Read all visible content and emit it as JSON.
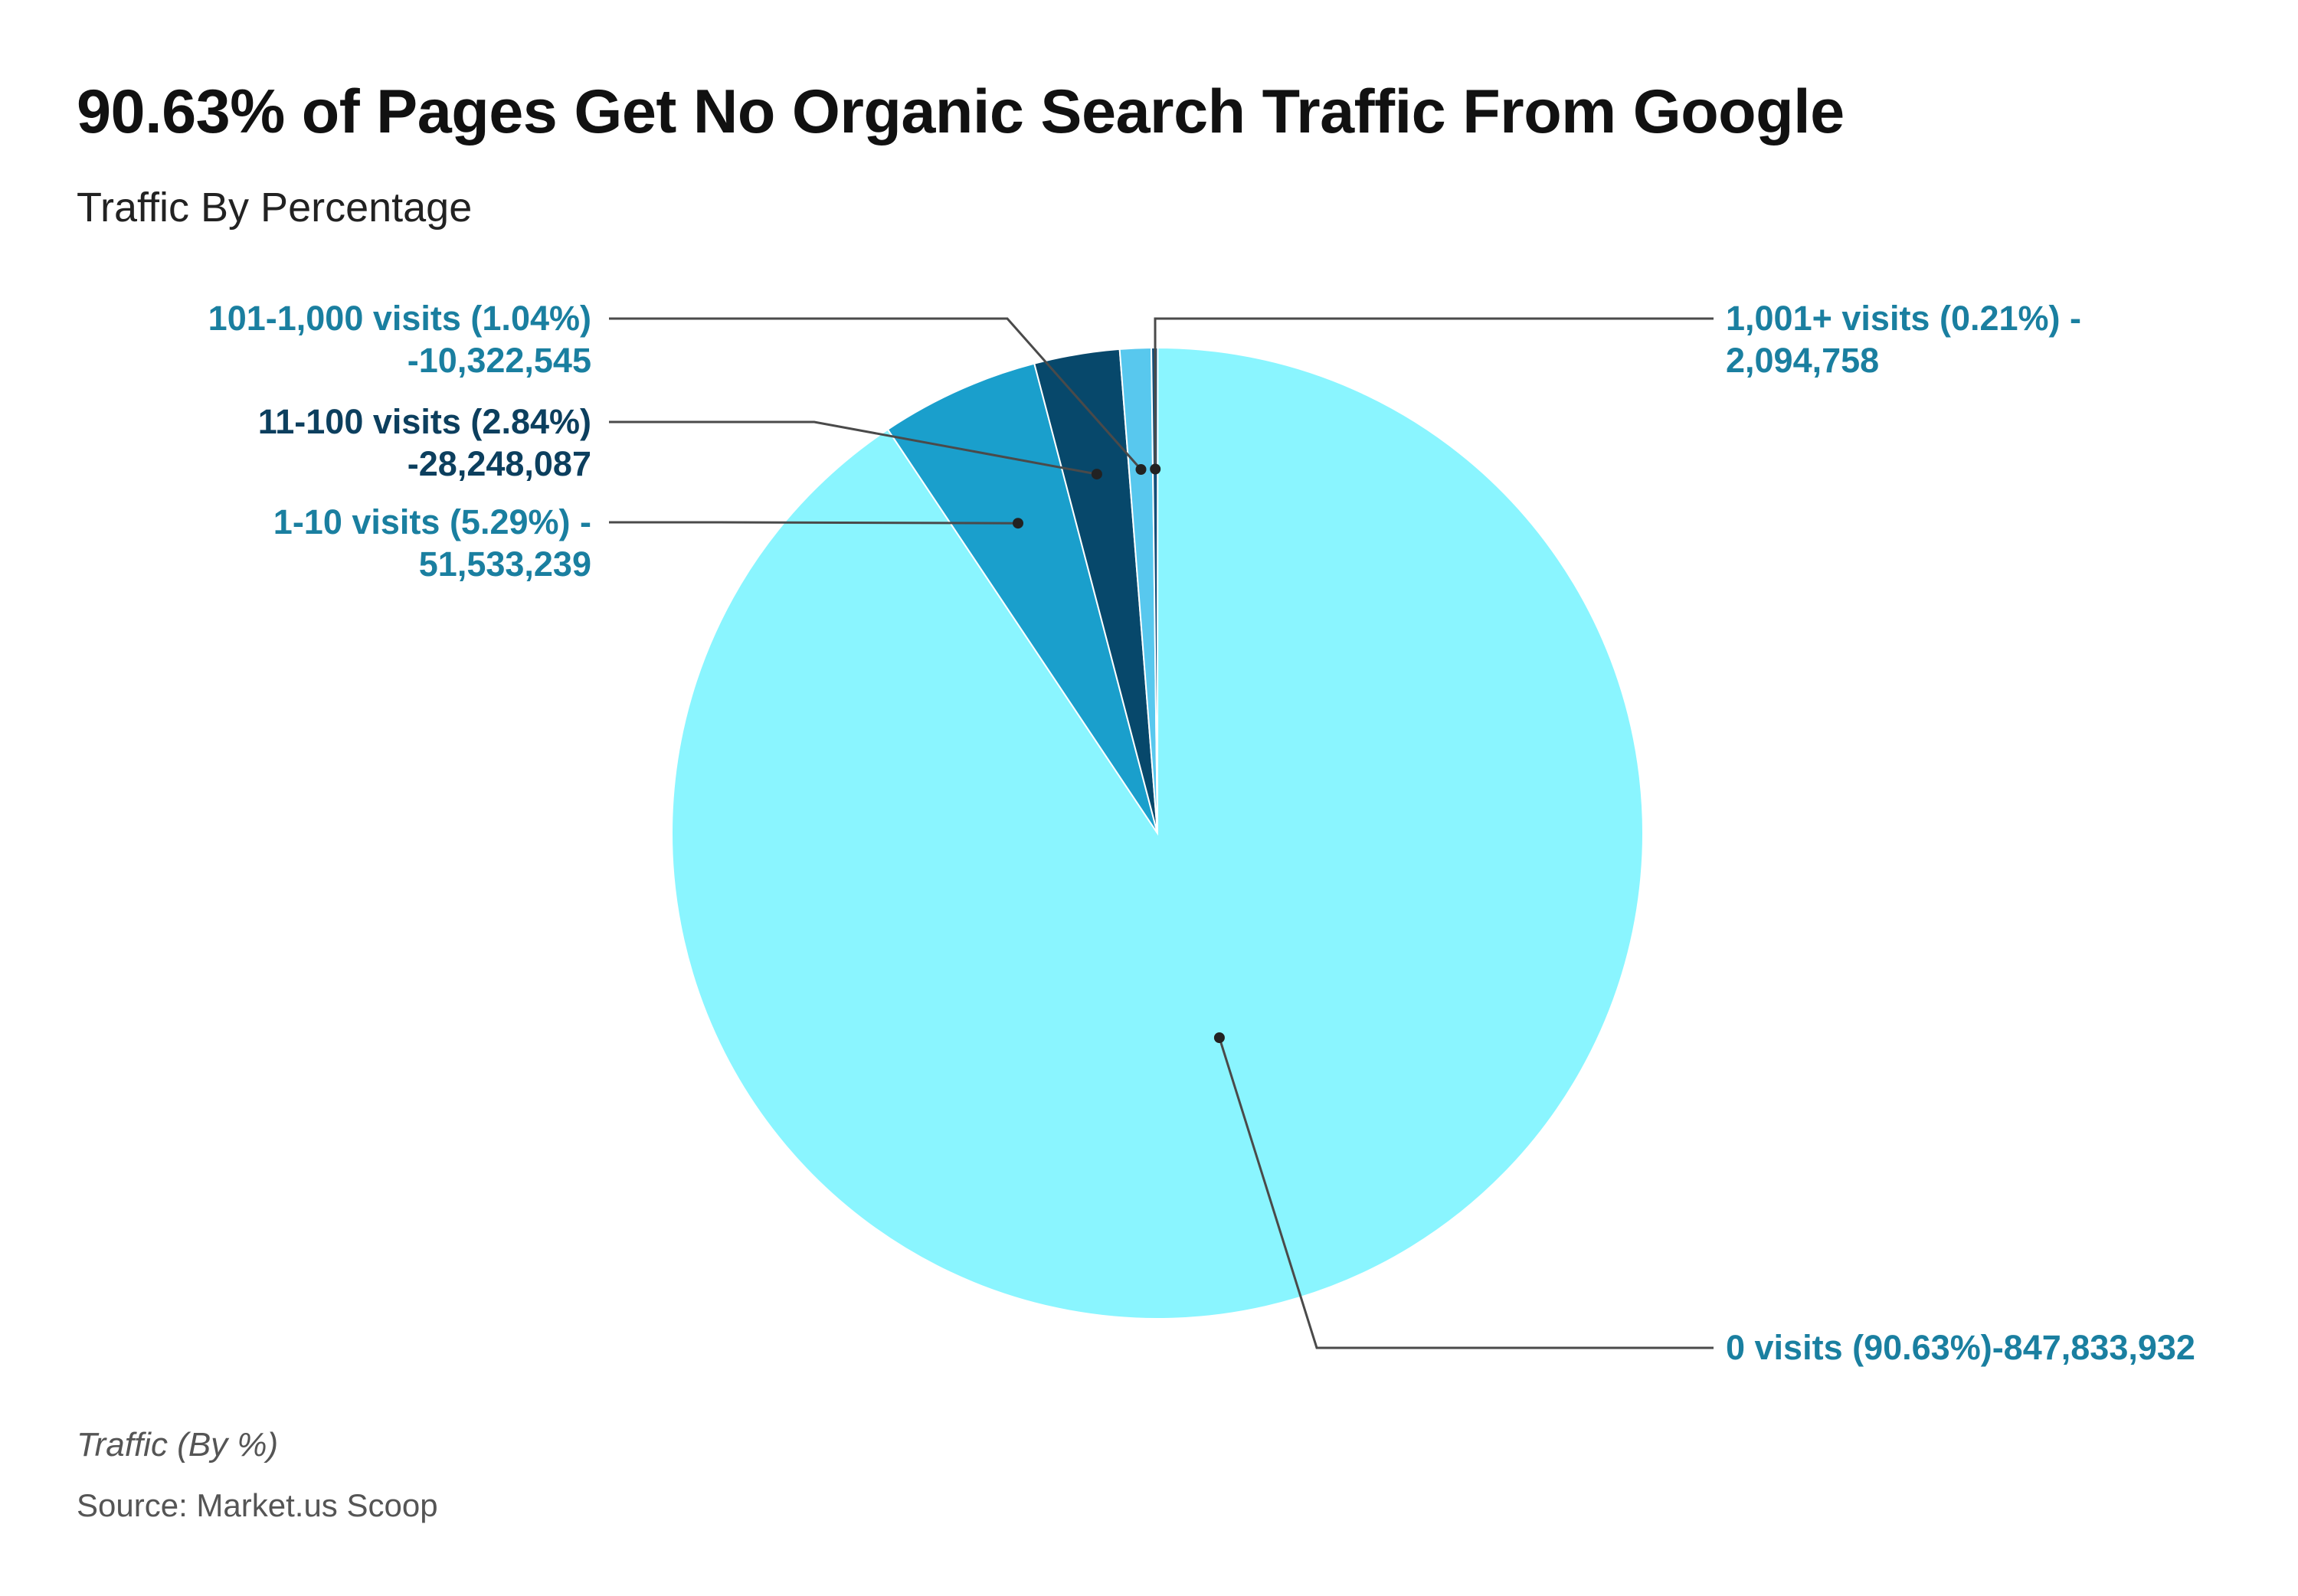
{
  "title": "90.63% of Pages Get No Organic Search Traffic From Google",
  "subtitle": "Traffic By Percentage",
  "footer": {
    "note": "Traffic (By %)",
    "source": "Source: Market.us Scoop"
  },
  "chart_data": {
    "type": "pie",
    "title": "90.63% of Pages Get No Organic Search Traffic From Google",
    "subtitle": "Traffic By Percentage",
    "start_angle_deg": 0,
    "direction": "clockwise",
    "slices": [
      {
        "key": "zero",
        "percent": 90.63,
        "value": 847833932,
        "color": "#8AF5FF",
        "label_lines": [
          "0 visits (90.63%)-847,833,932"
        ],
        "label_color": "#1A7FA0"
      },
      {
        "key": "one_to_ten",
        "percent": 5.29,
        "value": 51533239,
        "color": "#1A9FCC",
        "label_lines": [
          "1-10 visits (5.29%) -",
          "51,533,239"
        ],
        "label_color": "#1A7FA0"
      },
      {
        "key": "eleven_to_hundred",
        "percent": 2.84,
        "value": 28248087,
        "color": "#07486B",
        "label_lines": [
          "11-100 visits (2.84%)",
          "-28,248,087"
        ],
        "label_color": "#0C3F5E"
      },
      {
        "key": "hundred_to_thousand",
        "percent": 1.04,
        "value": 10322545,
        "color": "#58C8EE",
        "label_lines": [
          "101-1,000 visits (1.04%)",
          "-10,322,545"
        ],
        "label_color": "#1A7FA0"
      },
      {
        "key": "thousand_plus",
        "percent": 0.21,
        "value": 2094758,
        "color": "#124F7A",
        "label_lines": [
          "1,001+ visits (0.21%) -",
          "2,094,758"
        ],
        "label_color": "#1A7FA0"
      }
    ]
  }
}
